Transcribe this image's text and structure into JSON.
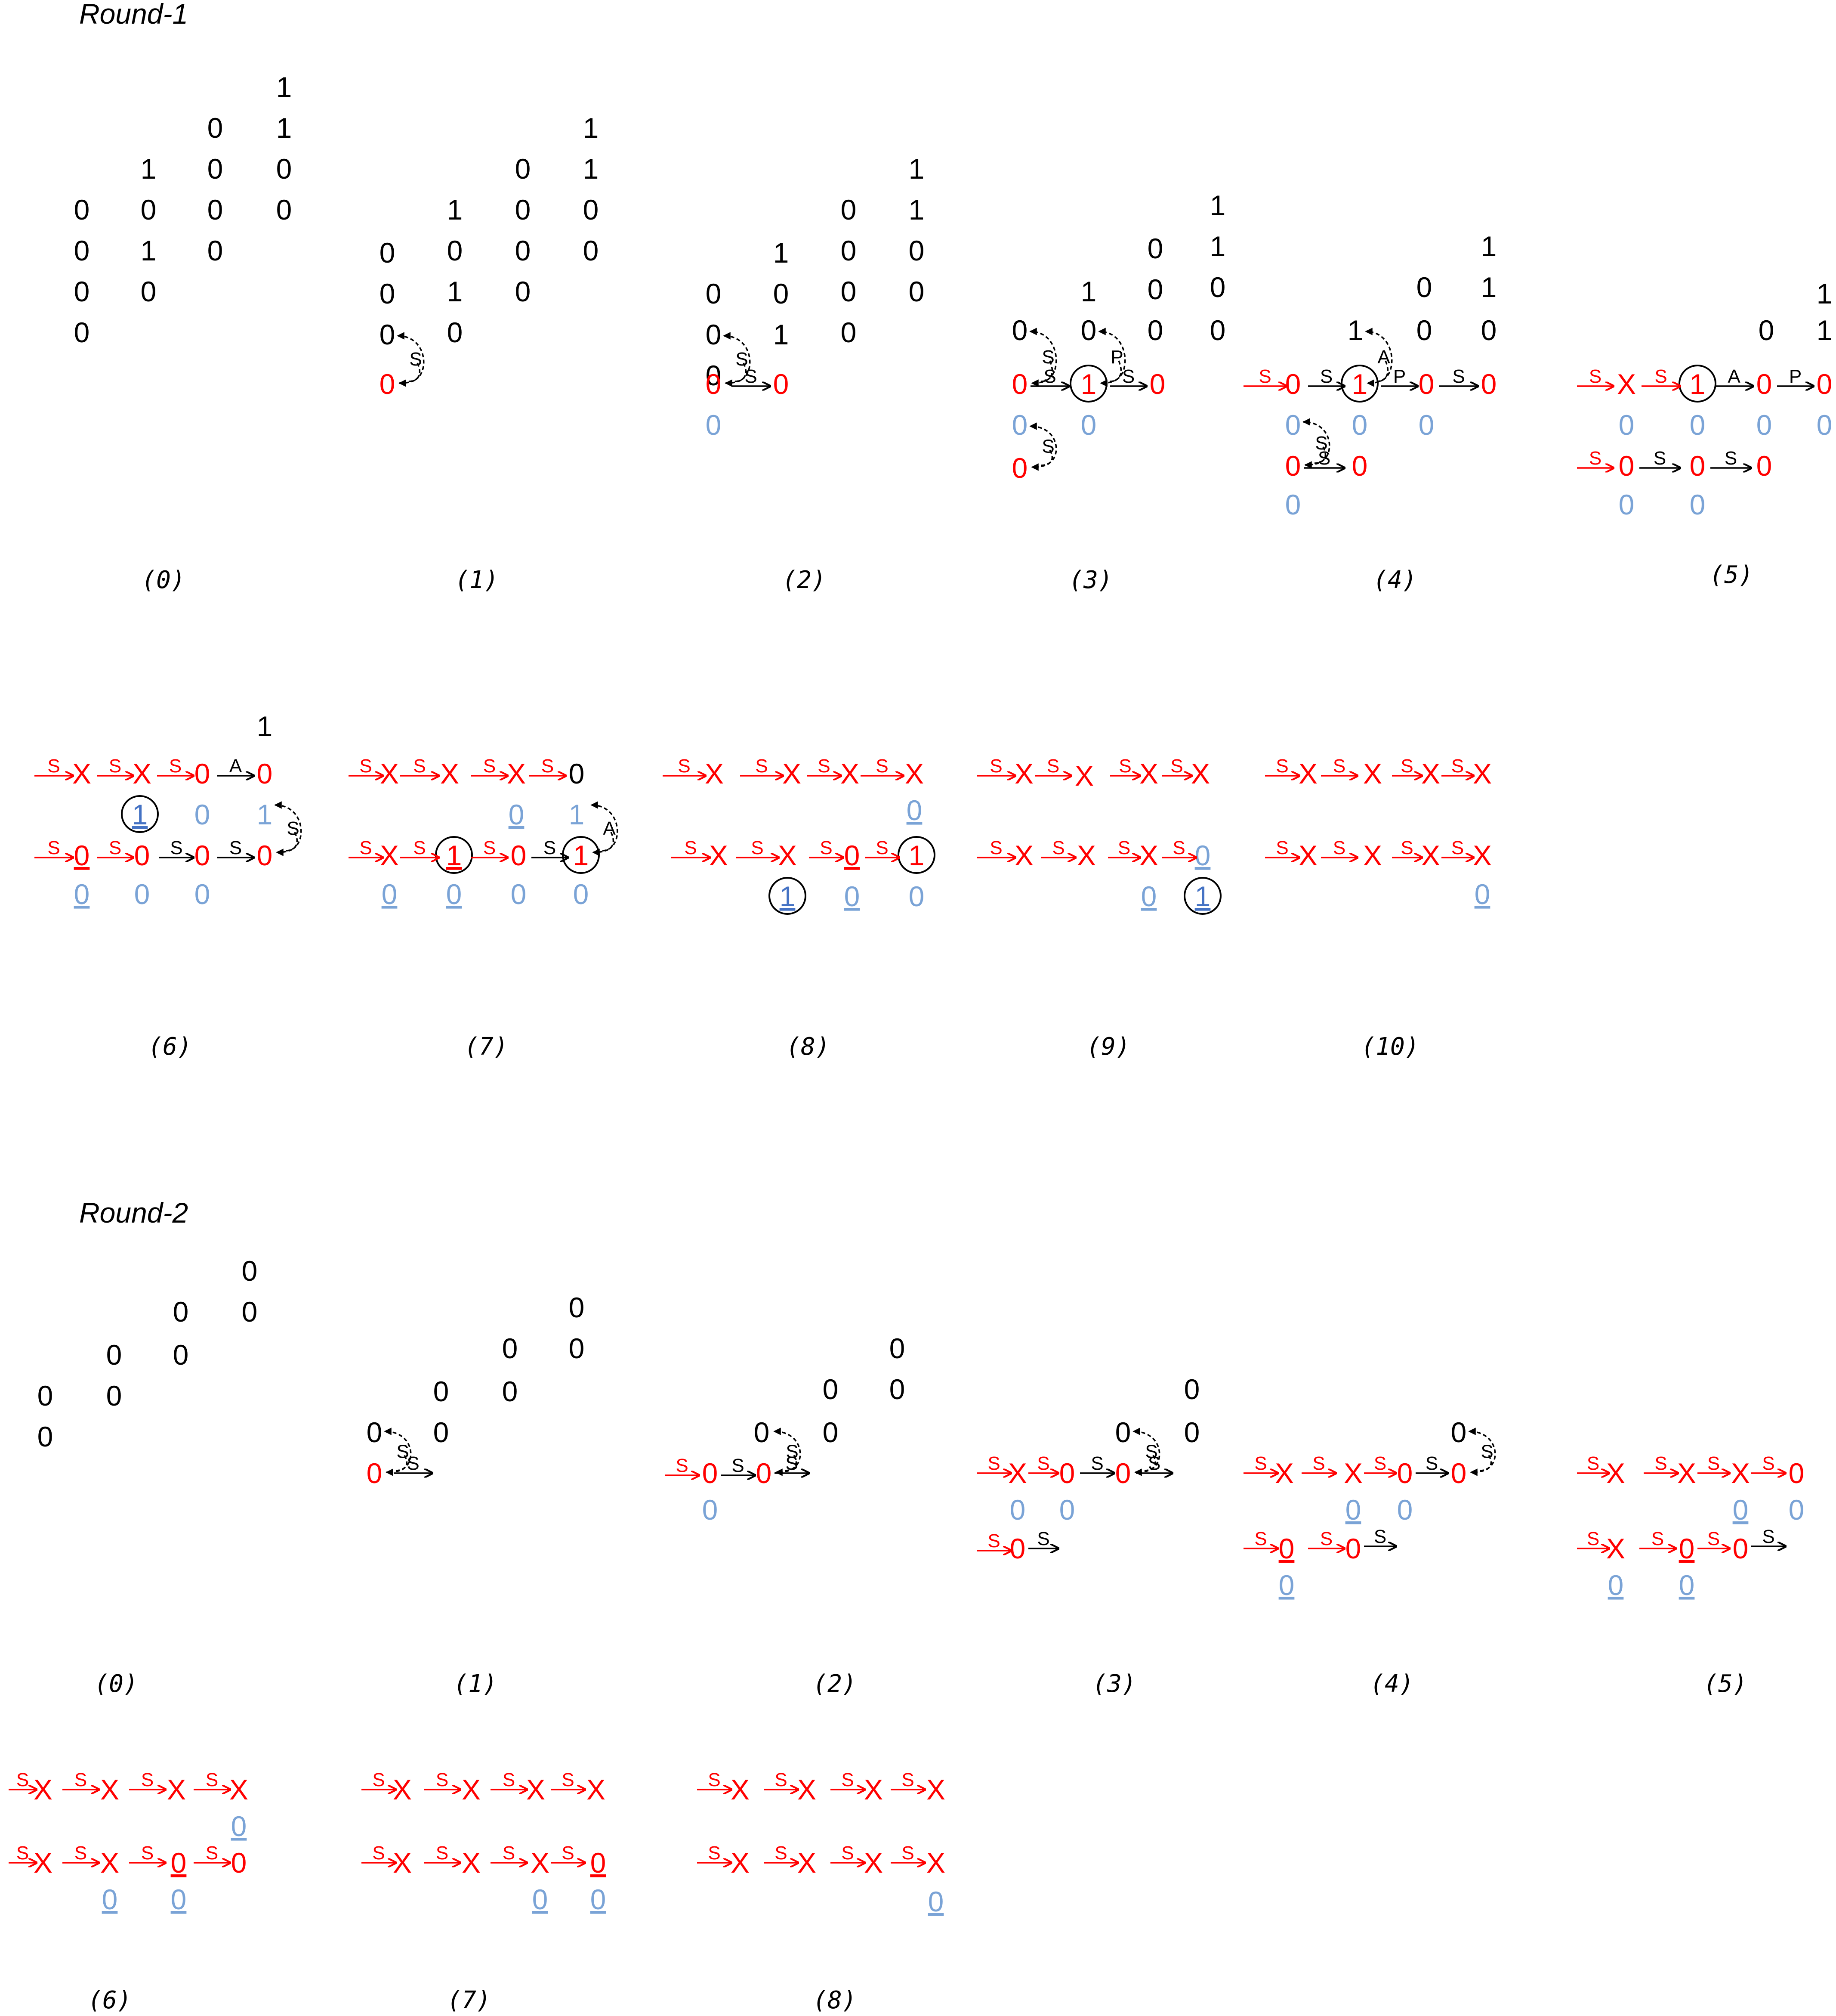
{
  "rounds": [
    {
      "title": "Round-1",
      "steps": [
        {
          "label": "(0)"
        },
        {
          "label": "(1)"
        },
        {
          "label": "(2)"
        },
        {
          "label": "(3)"
        },
        {
          "label": "(4)"
        },
        {
          "label": "(5)"
        },
        {
          "label": "(6)"
        },
        {
          "label": "(7)"
        },
        {
          "label": "(8)"
        },
        {
          "label": "(9)"
        },
        {
          "label": "(10)"
        }
      ]
    },
    {
      "title": "Round-2",
      "steps": [
        {
          "label": "(0)"
        },
        {
          "label": "(1)"
        },
        {
          "label": "(2)"
        },
        {
          "label": "(3)"
        },
        {
          "label": "(4)"
        },
        {
          "label": "(5)"
        },
        {
          "label": "(6)"
        },
        {
          "label": "(7)"
        },
        {
          "label": "(8)"
        }
      ]
    }
  ],
  "symbols": {
    "zero": "0",
    "one": "1",
    "cross": "X",
    "shift": "S",
    "add": "A",
    "propagate": "P"
  },
  "colors": {
    "pending": "#000000",
    "active": "#ff0000",
    "carry": "#7aa3d6",
    "carry_highlight": "#4472c4"
  }
}
